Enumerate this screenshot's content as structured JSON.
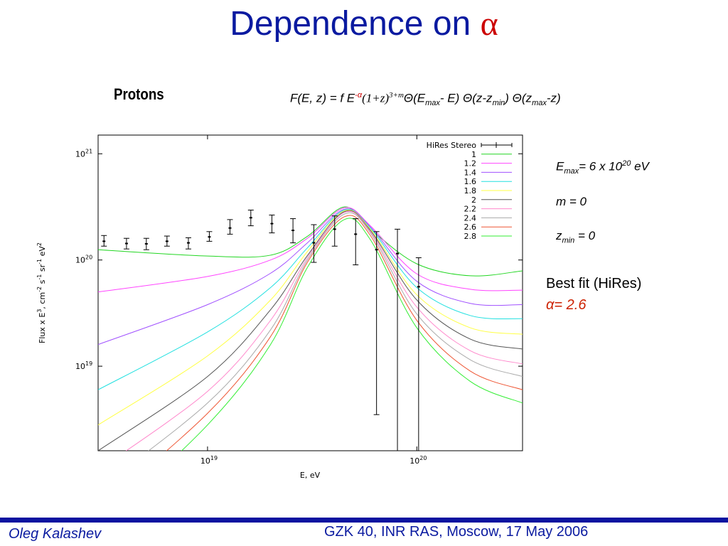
{
  "slide": {
    "title_text": "Dependence on",
    "title_symbol": "α",
    "protons_label": "Protons",
    "formula": {
      "p1": "F(E, z) = f E",
      "exp": "-α",
      "p2": "(1+z)",
      "exp2": "3+m",
      "p3": "Θ(E",
      "sub_max": "max",
      "p4": "- E) Θ(z-z",
      "sub_min": "min",
      "p5": ") Θ(z",
      "sub_max2": "max",
      "p6": "-z)"
    },
    "params": {
      "emax_base": "E",
      "emax_sub": "max",
      "emax_val": "= 6 x 10",
      "emax_exp": "20",
      "emax_unit": " eV",
      "m": "m = 0",
      "zmin_base": "z",
      "zmin_sub": "min",
      "zmin_val": " = 0"
    },
    "best_fit_label": "Best fit (HiRes)",
    "best_fit_value": "α= 2.6",
    "footer_left": "Oleg Kalashev",
    "footer_right": "GZK 40, INR RAS, Moscow, 17 May 2006"
  },
  "chart_data": {
    "type": "line",
    "xlabel": "E, eV",
    "ylabel": "Flux x E^3, cm^-2 s^-1 sr^-1 eV^2",
    "x_scale": "log",
    "y_scale": "log",
    "xlim": [
      3e+18,
      3.2e+20
    ],
    "ylim": [
      1.6e+18,
      1.5e+21
    ],
    "x_ticks": [
      {
        "value": 1e+19,
        "base": "10",
        "exp": "19"
      },
      {
        "value": 1e+20,
        "base": "10",
        "exp": "20"
      }
    ],
    "y_ticks": [
      {
        "value": 1e+19,
        "base": "10",
        "exp": "19"
      },
      {
        "value": 1e+20,
        "base": "10",
        "exp": "20"
      },
      {
        "value": 1e+21,
        "base": "10",
        "exp": "21"
      }
    ],
    "legend_position": "top-right",
    "x_samples": [
      3e+18,
      1e+19,
      2e+19,
      3e+19,
      4.5e+19,
      6e+19,
      1e+20,
      1.8e+20,
      3.2e+20
    ],
    "series": [
      {
        "name": "1",
        "color": "#22d622",
        "values": [
          1.25e+20,
          1.09e+20,
          1.11e+20,
          1.67e+20,
          3.16e+20,
          1.95e+20,
          9.2e+19,
          7.1e+19,
          7.9e+19
        ]
      },
      {
        "name": "1.2",
        "color": "#ff44ff",
        "values": [
          5e+19,
          7e+19,
          1e+20,
          1.6e+20,
          3.1e+20,
          2.1e+20,
          7.4e+19,
          5.3e+19,
          5.2e+19
        ]
      },
      {
        "name": "1.4",
        "color": "#a050ff",
        "values": [
          1.6e+19,
          3.8e+19,
          7.5e+19,
          1.45e+20,
          3e+20,
          2.05e+20,
          6.3e+19,
          3.9e+19,
          3.8e+19
        ]
      },
      {
        "name": "1.6",
        "color": "#22e0e0",
        "values": [
          6e+18,
          2.1e+19,
          5.5e+19,
          1.3e+20,
          2.95e+20,
          2e+20,
          5.5e+19,
          3e+19,
          2.8e+19
        ]
      },
      {
        "name": "1.8",
        "color": "#ffff44",
        "values": [
          2.8e+18,
          1.25e+19,
          4.2e+19,
          1.2e+20,
          2.9e+20,
          1.95e+20,
          4.7e+19,
          2.3e+19,
          2e+19
        ]
      },
      {
        "name": "2",
        "color": "#555555",
        "values": [
          1.6e+18,
          8e+18,
          3.4e+19,
          1.1e+20,
          2.85e+20,
          1.9e+20,
          4.2e+19,
          1.8e+19,
          1.45e+19
        ]
      },
      {
        "name": "2.2",
        "color": "#ff88cc",
        "values": [
          1.05e+18,
          5.8e+18,
          2.7e+19,
          1.05e+20,
          2.8e+20,
          1.85e+20,
          3.6e+19,
          1.4e+19,
          1.05e+19
        ]
      },
      {
        "name": "2.4",
        "color": "#aaaaaa",
        "values": [
          7e+17,
          4.5e+18,
          2.2e+19,
          1e+20,
          2.7e+20,
          1.8e+20,
          3.1e+19,
          1.15e+19,
          8e+18
        ]
      },
      {
        "name": "2.6",
        "color": "#ee5533",
        "values": [
          4.5e+17,
          3.6e+18,
          1.9e+19,
          9.5e+19,
          2.55e+20,
          1.7e+20,
          2.7e+19,
          9e+18,
          6e+18
        ]
      },
      {
        "name": "2.8",
        "color": "#33ee33",
        "values": [
          3e+17,
          2.8e+18,
          1.6e+19,
          8.5e+19,
          2.4e+20,
          1.55e+20,
          2.3e+19,
          7.2e+18,
          4.5e+18
        ]
      }
    ],
    "data_series": {
      "name": "HiRes Stereo",
      "points": [
        {
          "x": 3.2e+18,
          "y": 1.5e+20,
          "lo": 1.35e+20,
          "hi": 1.7e+20
        },
        {
          "x": 4.1e+18,
          "y": 1.43e+20,
          "lo": 1.27e+20,
          "hi": 1.6e+20
        },
        {
          "x": 5.1e+18,
          "y": 1.42e+20,
          "lo": 1.25e+20,
          "hi": 1.6e+20
        },
        {
          "x": 6.4e+18,
          "y": 1.5e+20,
          "lo": 1.35e+20,
          "hi": 1.68e+20
        },
        {
          "x": 8.1e+18,
          "y": 1.45e+20,
          "lo": 1.27e+20,
          "hi": 1.62e+20
        },
        {
          "x": 1.02e+19,
          "y": 1.65e+20,
          "lo": 1.5e+20,
          "hi": 1.85e+20
        },
        {
          "x": 1.28e+19,
          "y": 2e+20,
          "lo": 1.75e+20,
          "hi": 2.4e+20
        },
        {
          "x": 1.61e+19,
          "y": 2.5e+20,
          "lo": 2.1e+20,
          "hi": 2.95e+20
        },
        {
          "x": 2.03e+19,
          "y": 2.2e+20,
          "lo": 1.8e+20,
          "hi": 2.65e+20
        },
        {
          "x": 2.56e+19,
          "y": 1.9e+20,
          "lo": 1.45e+20,
          "hi": 2.45e+20
        },
        {
          "x": 3.22e+19,
          "y": 1.45e+20,
          "lo": 9.5e+19,
          "hi": 2.15e+20
        },
        {
          "x": 4.05e+19,
          "y": 1.95e+20,
          "lo": 1.35e+20,
          "hi": 2.6e+20
        },
        {
          "x": 5.1e+19,
          "y": 1.75e+20,
          "lo": 9e+19,
          "hi": 2.45e+20
        },
        {
          "x": 6.42e+19,
          "y": 1.25e+20,
          "lo": 3.5e+18,
          "hi": 1.85e+20
        },
        {
          "x": 8.08e+19,
          "y": 1.15e+20,
          "lo": 1e+17,
          "hi": 1.95e+20
        },
        {
          "x": 1.02e+20,
          "y": 5.6e+19,
          "lo": 1e+17,
          "hi": 1.05e+20
        }
      ]
    }
  }
}
